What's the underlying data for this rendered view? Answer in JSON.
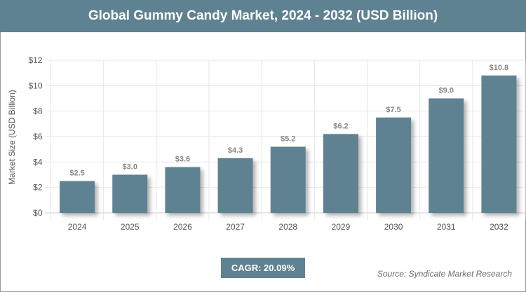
{
  "header": {
    "title": "Global Gummy Candy Market, 2024 - 2032 (USD Billion)"
  },
  "footer": {
    "cagr": "CAGR: 20.09%",
    "source": "Source: Syndicate Market Research"
  },
  "colors": {
    "bar": "#5f8292",
    "header": "#5f8292"
  },
  "chart_data": {
    "type": "bar",
    "title": "Global Gummy Candy Market, 2024 - 2032 (USD Billion)",
    "xlabel": "",
    "ylabel": "Market Size (USD Billion)",
    "categories": [
      "2024",
      "2025",
      "2026",
      "2027",
      "2028",
      "2029",
      "2030",
      "2031",
      "2032"
    ],
    "values": [
      2.5,
      3.0,
      3.6,
      4.3,
      5.2,
      6.2,
      7.5,
      9.0,
      10.8
    ],
    "data_labels": [
      "$2.5",
      "$3.0",
      "$3.6",
      "$4.3",
      "$5.2",
      "$6.2",
      "$7.5",
      "$9.0",
      "$10.8"
    ],
    "ylim": [
      0,
      12
    ],
    "yticks": [
      "$0",
      "$2",
      "$4",
      "$6",
      "$8",
      "$10",
      "$12"
    ],
    "grid": true
  }
}
